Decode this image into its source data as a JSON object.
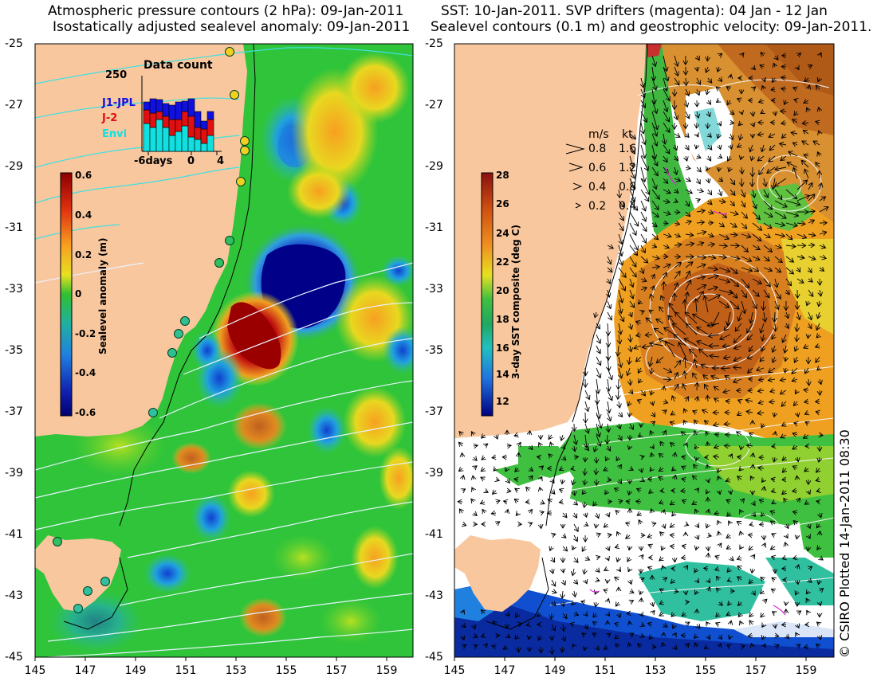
{
  "left_panel": {
    "title_line1": "Atmospheric pressure contours (2 hPa): 09-Jan-2011",
    "title_line2": "Isostatically adjusted sealevel anomaly: 09-Jan-2011",
    "colorbar": {
      "title": "Sealevel anomaly (m)",
      "ticks": [
        "0.6",
        "0.4",
        "0.2",
        "0",
        "-0.2",
        "-0.4",
        "-0.6"
      ]
    },
    "inset": {
      "title": "Data count",
      "ymax_label": "250",
      "xticks": [
        "-6days",
        "0",
        "4"
      ],
      "legend": [
        {
          "label": "J1-JPL",
          "color": "#1010e0"
        },
        {
          "label": "J-2",
          "color": "#e01010"
        },
        {
          "label": "Envi",
          "color": "#10e0e0"
        }
      ]
    }
  },
  "right_panel": {
    "title_line1": "SST: 10-Jan-2011. SVP drifters (magenta): 04 Jan - 12 Jan",
    "title_line2": "Sealevel contours (0.1 m) and geostrophic velocity: 09-Jan-2011.",
    "colorbar": {
      "title": "3-day SST composite (deg C)",
      "ticks": [
        "28",
        "26",
        "24",
        "22",
        "20",
        "18",
        "16",
        "14",
        "12"
      ]
    },
    "velocity_legend": {
      "header_ms": "m/s",
      "header_kt": "kt",
      "rows": [
        {
          "ms": "0.8",
          "kt": "1.6"
        },
        {
          "ms": "0.6",
          "kt": "1.2"
        },
        {
          "ms": "0.4",
          "kt": "0.8"
        },
        {
          "ms": "0.2",
          "kt": "0.4"
        }
      ]
    }
  },
  "axes": {
    "lat_ticks": [
      "-25",
      "-27",
      "-29",
      "-31",
      "-33",
      "-35",
      "-37",
      "-39",
      "-41",
      "-43",
      "-45"
    ],
    "lon_ticks": [
      "145",
      "147",
      "149",
      "151",
      "153",
      "155",
      "157",
      "159"
    ]
  },
  "credit": "© CSIRO Plotted 14-Jan-2011 08:30",
  "colors": {
    "land": "#f9c79e",
    "sea_green": "#2fc43a",
    "no_data": "#ffffff"
  }
}
